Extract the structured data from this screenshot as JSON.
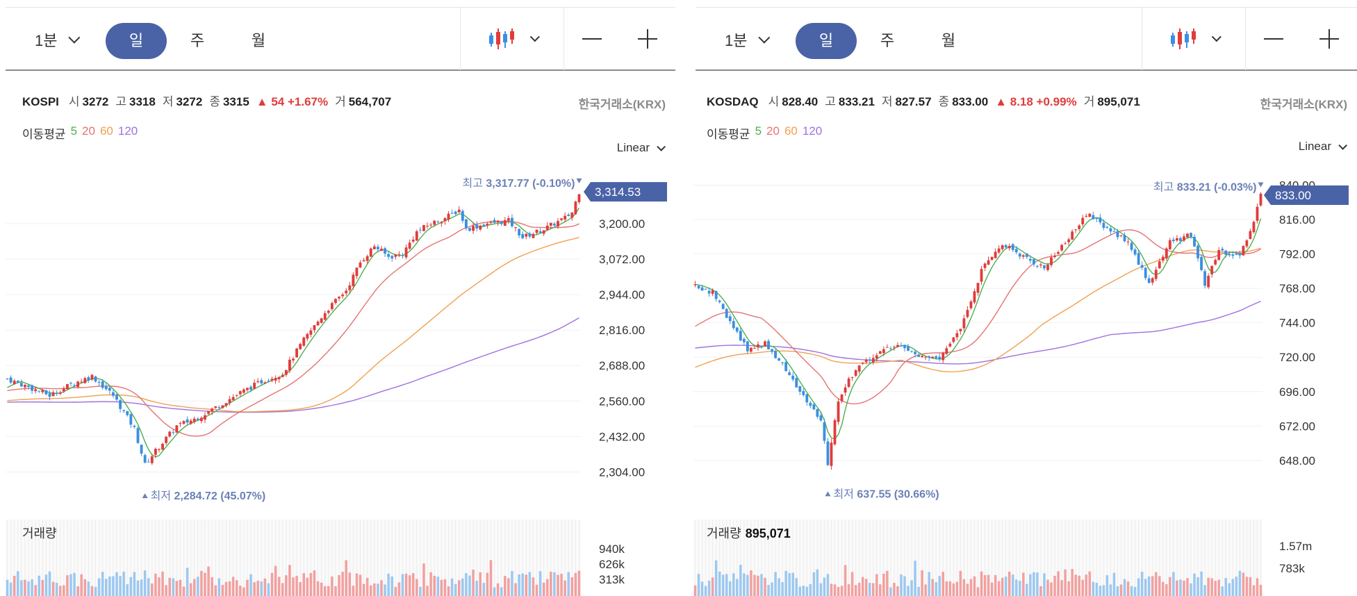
{
  "panels": [
    {
      "interval_label": "1분",
      "tabs": [
        "일",
        "주",
        "월"
      ],
      "active_tab": 0,
      "quote": {
        "symbol": "KOSPI",
        "open_label": "시",
        "open": "3272",
        "high_label": "고",
        "high": "3318",
        "low_label": "저",
        "low": "3272",
        "close_label": "종",
        "close": "3315",
        "change": "▲ 54 +1.67%",
        "volume_label": "거",
        "volume": "564,707"
      },
      "exchange": "한국거래소(KRX)",
      "ma": {
        "label": "이동평균",
        "periods": [
          "5",
          "20",
          "60",
          "120"
        ]
      },
      "scale_mode": "Linear",
      "high_annotation": {
        "label": "최고",
        "value": "3,317.77 (-0.10%)"
      },
      "low_annotation": {
        "label": "최저",
        "value": "2,284.72 (45.07%)"
      },
      "current_price": "3,314.53",
      "y_ticks": [
        "3,200.00",
        "3,072.00",
        "2,944.00",
        "2,816.00",
        "2,688.00",
        "2,560.00",
        "2,432.00",
        "2,304.00"
      ],
      "volume": {
        "label": "거래량",
        "value": "",
        "ticks": [
          "940k",
          "626k",
          "313k"
        ]
      }
    },
    {
      "interval_label": "1분",
      "tabs": [
        "일",
        "주",
        "월"
      ],
      "active_tab": 0,
      "quote": {
        "symbol": "KOSDAQ",
        "open_label": "시",
        "open": "828.40",
        "high_label": "고",
        "high": "833.21",
        "low_label": "저",
        "low": "827.57",
        "close_label": "종",
        "close": "833.00",
        "change": "▲ 8.18 +0.99%",
        "volume_label": "거",
        "volume": "895,071"
      },
      "exchange": "한국거래소(KRX)",
      "ma": {
        "label": "이동평균",
        "periods": [
          "5",
          "20",
          "60",
          "120"
        ]
      },
      "scale_mode": "Linear",
      "high_annotation": {
        "label": "최고",
        "value": "833.21 (-0.03%)"
      },
      "low_annotation": {
        "label": "최저",
        "value": "637.55 (30.66%)"
      },
      "current_price": "833.00",
      "y_ticks": [
        "840.00",
        "816.00",
        "792.00",
        "768.00",
        "744.00",
        "720.00",
        "696.00",
        "672.00",
        "648.00"
      ],
      "volume": {
        "label": "거래량",
        "value": "895,071",
        "ticks": [
          "1.57m",
          "783k"
        ]
      }
    }
  ],
  "colors": {
    "up": "#e03c3c",
    "down": "#3b8fe0",
    "ma5": "#4caf50",
    "ma20": "#e57373",
    "ma60": "#f0a050",
    "ma120": "#a070e0",
    "accent": "#4a63a7",
    "vol_up": "#f2a0a0",
    "vol_down": "#9cc8ef"
  },
  "chart_data": [
    {
      "type": "candlestick",
      "title": "KOSPI",
      "ylim": [
        2260,
        3350
      ],
      "y_ticks": [
        3200,
        3072,
        2944,
        2816,
        2688,
        2560,
        2432,
        2304
      ],
      "close_anchors": [
        [
          0,
          2640
        ],
        [
          6,
          2610
        ],
        [
          12,
          2580
        ],
        [
          18,
          2620
        ],
        [
          24,
          2650
        ],
        [
          30,
          2580
        ],
        [
          36,
          2460
        ],
        [
          39,
          2330
        ],
        [
          42,
          2380
        ],
        [
          48,
          2470
        ],
        [
          54,
          2500
        ],
        [
          60,
          2545
        ],
        [
          66,
          2590
        ],
        [
          72,
          2630
        ],
        [
          78,
          2660
        ],
        [
          84,
          2780
        ],
        [
          90,
          2880
        ],
        [
          96,
          2960
        ],
        [
          100,
          3060
        ],
        [
          104,
          3120
        ],
        [
          108,
          3080
        ],
        [
          112,
          3090
        ],
        [
          116,
          3170
        ],
        [
          120,
          3200
        ],
        [
          124,
          3220
        ],
        [
          128,
          3250
        ],
        [
          130,
          3180
        ],
        [
          136,
          3200
        ],
        [
          142,
          3210
        ],
        [
          146,
          3150
        ],
        [
          152,
          3180
        ],
        [
          158,
          3220
        ],
        [
          160,
          3240
        ],
        [
          162,
          3315
        ]
      ],
      "ma_last": {
        "ma5": 3240,
        "ma20": 3195,
        "ma60": 3150,
        "ma120": 2860
      },
      "ma_first": {
        "ma5": 2600,
        "ma20": 2595,
        "ma60": 2560,
        "ma120": 2555
      },
      "high": 3317.77,
      "low": 2284.72,
      "current": 3314.53,
      "last_volume": 564707
    },
    {
      "type": "candlestick",
      "title": "KOSDAQ",
      "ylim": [
        630,
        848
      ],
      "y_ticks": [
        840,
        816,
        792,
        768,
        744,
        720,
        696,
        672,
        648
      ],
      "close_anchors": [
        [
          0,
          770
        ],
        [
          5,
          765
        ],
        [
          10,
          745
        ],
        [
          15,
          725
        ],
        [
          20,
          730
        ],
        [
          25,
          715
        ],
        [
          30,
          695
        ],
        [
          36,
          675
        ],
        [
          38,
          645
        ],
        [
          41,
          690
        ],
        [
          46,
          712
        ],
        [
          52,
          722
        ],
        [
          58,
          730
        ],
        [
          64,
          720
        ],
        [
          70,
          718
        ],
        [
          76,
          740
        ],
        [
          82,
          780
        ],
        [
          88,
          800
        ],
        [
          94,
          790
        ],
        [
          100,
          783
        ],
        [
          106,
          800
        ],
        [
          112,
          820
        ],
        [
          118,
          810
        ],
        [
          124,
          800
        ],
        [
          130,
          772
        ],
        [
          136,
          800
        ],
        [
          142,
          806
        ],
        [
          146,
          770
        ],
        [
          150,
          795
        ],
        [
          156,
          790
        ],
        [
          160,
          815
        ],
        [
          162,
          833
        ]
      ],
      "ma_last": {
        "ma5": 815,
        "ma20": 801,
        "ma60": 796,
        "ma120": 759
      },
      "ma_first": {
        "ma5": 771,
        "ma20": 740,
        "ma60": 712,
        "ma120": 726
      },
      "high": 833.21,
      "low": 637.55,
      "current": 833.0,
      "last_volume": 895071
    }
  ]
}
